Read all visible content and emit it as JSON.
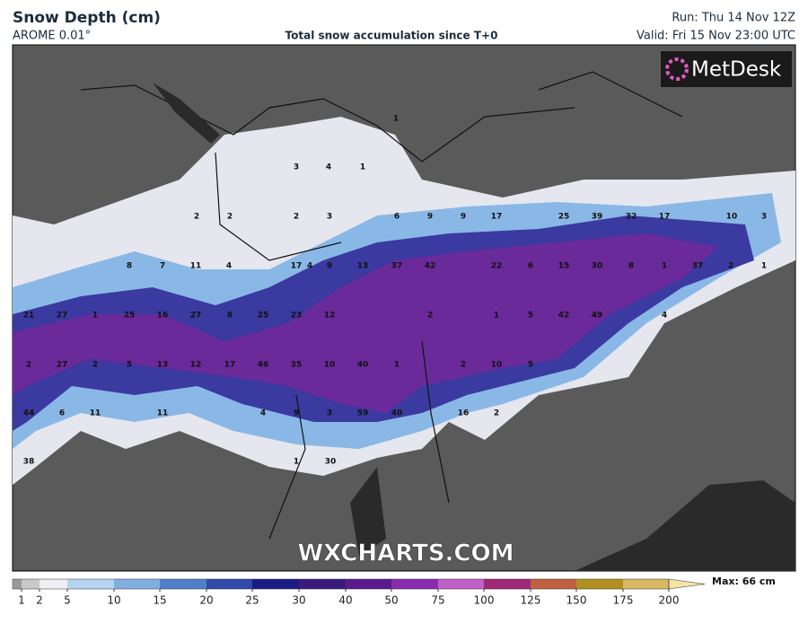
{
  "header": {
    "title": "Snow Depth (cm)",
    "model": "AROME 0.01°",
    "subtitle": "Total snow accumulation since T+0",
    "run": "Run: Thu 14 Nov 12Z",
    "valid": "Valid: Fri 15 Nov 23:00 UTC"
  },
  "logo": "MetDesk",
  "watermark": "WXCHARTS.COM",
  "legend": {
    "ticks": [
      1,
      2,
      5,
      10,
      15,
      20,
      25,
      30,
      40,
      50,
      75,
      100,
      125,
      150,
      175,
      200
    ],
    "colors": [
      "#9a9a9a",
      "#c8c8c8",
      "#eeeef4",
      "#b4d4f0",
      "#7fb0e0",
      "#4f7fc8",
      "#2f4aa8",
      "#1c1a86",
      "#3a1a7a",
      "#5a1a8e",
      "#8a2ab0",
      "#c060c8",
      "#a02878",
      "#c06040",
      "#b09020",
      "#d8b860",
      "#f4e4a8"
    ],
    "max_label": "Max: 66 cm"
  },
  "map_labels": [
    1,
    3,
    4,
    1,
    2,
    2,
    2,
    3,
    6,
    9,
    9,
    17,
    25,
    39,
    32,
    17,
    10,
    3,
    8,
    7,
    11,
    4,
    17,
    4,
    9,
    13,
    37,
    42,
    22,
    6,
    15,
    30,
    8,
    1,
    37,
    2,
    1,
    21,
    27,
    1,
    25,
    16,
    27,
    8,
    25,
    23,
    12,
    2,
    1,
    5,
    42,
    49,
    4,
    2,
    27,
    2,
    5,
    13,
    12,
    17,
    46,
    35,
    10,
    40,
    1,
    2,
    10,
    5,
    44,
    6,
    11,
    11,
    4,
    9,
    3,
    59,
    40,
    16,
    2,
    38,
    1,
    30
  ]
}
